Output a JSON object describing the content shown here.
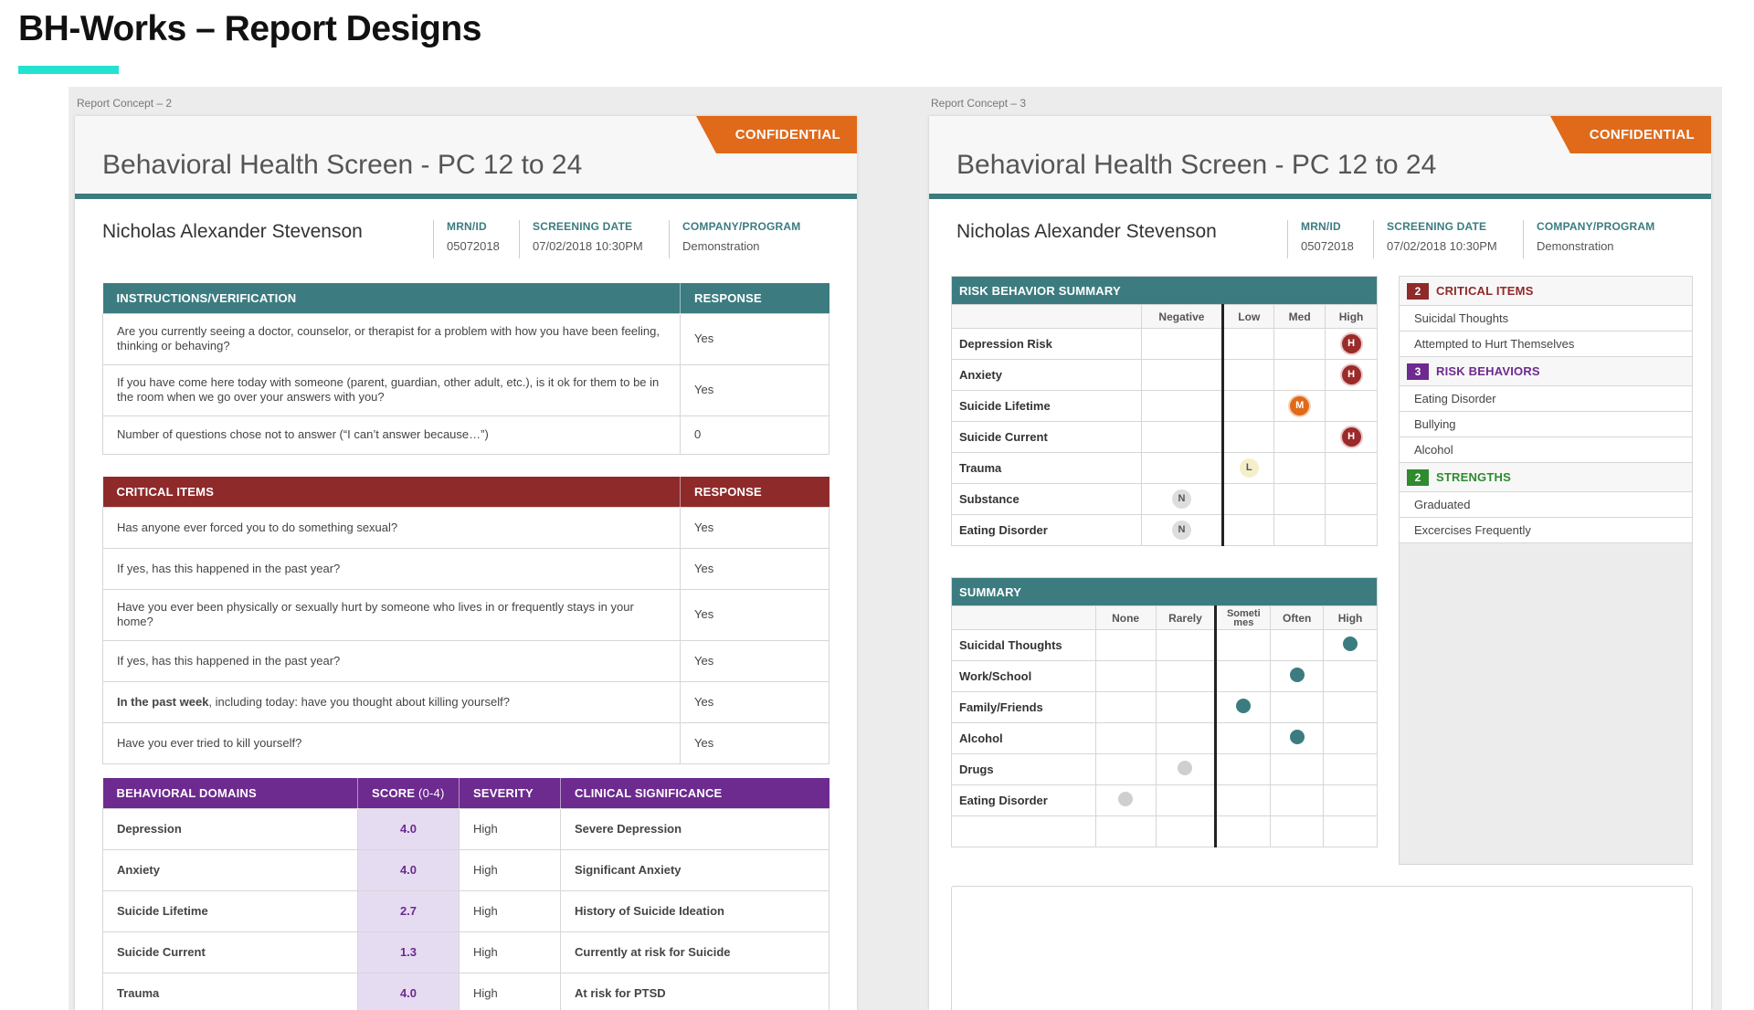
{
  "page": {
    "title": "BH-Works – Report Designs"
  },
  "colors": {
    "accent": "#22e3cf",
    "teal": "#3c7c80",
    "red": "#8f2a2a",
    "purple": "#6d2a8f",
    "orange": "#e06a1a",
    "green": "#2e8b2e"
  },
  "concept2": {
    "label": "Report Concept – 2",
    "confidential": "CONFIDENTIAL",
    "heading": "Behavioral Health Screen - PC 12 to 24",
    "patient": "Nicholas Alexander Stevenson",
    "meta": [
      {
        "label": "MRN/ID",
        "value": "05072018"
      },
      {
        "label": "SCREENING DATE",
        "value": "07/02/2018 10:30PM"
      },
      {
        "label": "COMPANY/PROGRAM",
        "value": "Demonstration"
      }
    ],
    "instructions": {
      "header": "INSTRUCTIONS/VERIFICATION",
      "response_header": "RESPONSE",
      "rows": [
        {
          "q": "Are you currently seeing a doctor, counselor, or therapist for a problem with how you have been feeling, thinking or behaving?",
          "a": "Yes"
        },
        {
          "q": "If you have come here today with someone (parent, guardian, other adult, etc.), is it ok for them to be in the room when we go over your answers with you?",
          "a": "Yes"
        },
        {
          "q": "Number of questions chose not to answer (“I can’t answer because…”)",
          "a": "0"
        }
      ]
    },
    "critical": {
      "header": "CRITICAL ITEMS",
      "response_header": "RESPONSE",
      "rows": [
        {
          "q": "Has anyone ever forced you to do something sexual?",
          "a": "Yes"
        },
        {
          "q": "If yes, has this happened in the past year?",
          "a": "Yes"
        },
        {
          "q": "Have you ever been physically or sexually hurt by someone who lives in or frequently stays in your home?",
          "a": "Yes"
        },
        {
          "q": "If yes, has this happened in the past year?",
          "a": "Yes"
        },
        {
          "q_bold": "In the past week",
          "q": ", including today: have you thought about killing yourself?",
          "a": "Yes"
        },
        {
          "q": "Have you ever tried to kill yourself?",
          "a": "Yes"
        }
      ]
    },
    "domains": {
      "headers": {
        "domain": "BEHAVIORAL DOMAINS",
        "score": "SCORE",
        "score_range": "(0-4)",
        "severity": "SEVERITY",
        "clinical": "CLINICAL SIGNIFICANCE"
      },
      "rows": [
        {
          "domain": "Depression",
          "score": "4.0",
          "severity": "High",
          "clinical": "Severe Depression"
        },
        {
          "domain": "Anxiety",
          "score": "4.0",
          "severity": "High",
          "clinical": "Significant Anxiety"
        },
        {
          "domain": "Suicide Lifetime",
          "score": "2.7",
          "severity": "High",
          "clinical": "History of Suicide Ideation"
        },
        {
          "domain": "Suicide Current",
          "score": "1.3",
          "severity": "High",
          "clinical": "Currently at risk for Suicide"
        },
        {
          "domain": "Trauma",
          "score": "4.0",
          "severity": "High",
          "clinical": "At risk for PTSD"
        }
      ]
    }
  },
  "concept3": {
    "label": "Report Concept – 3",
    "confidential": "CONFIDENTIAL",
    "heading": "Behavioral Health Screen - PC 12 to 24",
    "patient": "Nicholas Alexander Stevenson",
    "meta": [
      {
        "label": "MRN/ID",
        "value": "05072018"
      },
      {
        "label": "SCREENING DATE",
        "value": "07/02/2018 10:30PM"
      },
      {
        "label": "COMPANY/PROGRAM",
        "value": "Demonstration"
      }
    ],
    "risk_summary": {
      "header": "RISK BEHAVIOR SUMMARY",
      "columns": [
        "Negative",
        "Low",
        "Med",
        "High"
      ],
      "rows": [
        {
          "label": "Depression Risk",
          "level": "H",
          "col": 3
        },
        {
          "label": "Anxiety",
          "level": "H",
          "col": 3
        },
        {
          "label": "Suicide Lifetime",
          "level": "M",
          "col": 2
        },
        {
          "label": "Suicide Current",
          "level": "H",
          "col": 3
        },
        {
          "label": "Trauma",
          "level": "L",
          "col": 1
        },
        {
          "label": "Substance",
          "level": "N",
          "col": 0
        },
        {
          "label": "Eating Disorder",
          "level": "N",
          "col": 0
        }
      ]
    },
    "summary": {
      "header": "SUMMARY",
      "columns": [
        "None",
        "Rarely",
        "Sometimes",
        "Often",
        "High"
      ],
      "rows": [
        {
          "label": "Suicidal Thoughts",
          "col": 4,
          "tone": "teal"
        },
        {
          "label": "Work/School",
          "col": 3,
          "tone": "teal"
        },
        {
          "label": "Family/Friends",
          "col": 2,
          "tone": "teal"
        },
        {
          "label": "Alcohol",
          "col": 3,
          "tone": "teal"
        },
        {
          "label": "Drugs",
          "col": 1,
          "tone": "gray"
        },
        {
          "label": "Eating Disorder",
          "col": 0,
          "tone": "gray"
        }
      ]
    },
    "side": {
      "critical": {
        "count": "2",
        "title": "CRITICAL ITEMS",
        "items": [
          "Suicidal Thoughts",
          "Attempted to Hurt Themselves"
        ]
      },
      "risk": {
        "count": "3",
        "title": "RISK BEHAVIORS",
        "items": [
          "Eating Disorder",
          "Bullying",
          "Alcohol"
        ]
      },
      "strengths": {
        "count": "2",
        "title": "STRENGTHS",
        "items": [
          "Graduated",
          "Excercises Frequently"
        ]
      }
    }
  }
}
